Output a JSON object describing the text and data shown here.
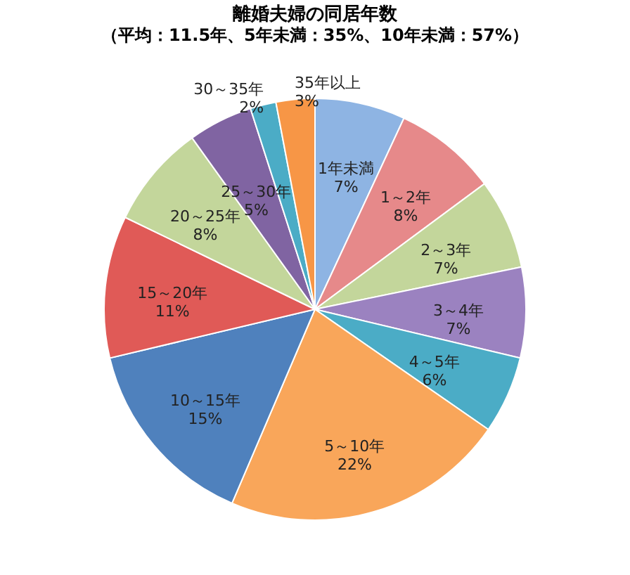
{
  "chart_data": {
    "type": "pie",
    "title": "離婚夫婦の同居年数",
    "subtitle": "（平均：11.5年、5年未満：35%、10年未満：57%）",
    "categories": [
      "1年未満",
      "1～2年",
      "2～3年",
      "3～4年",
      "4～5年",
      "5～10年",
      "10～15年",
      "15～20年",
      "20～25年",
      "25～30年",
      "30～35年",
      "35年以上"
    ],
    "values": [
      7,
      8,
      7,
      7,
      6,
      22,
      15,
      11,
      8,
      5,
      2,
      3
    ],
    "value_labels": [
      "7%",
      "8%",
      "7%",
      "7%",
      "6%",
      "22%",
      "15%",
      "11%",
      "8%",
      "5%",
      "2%",
      "3%"
    ],
    "colors": [
      "#8eb4e3",
      "#e6898a",
      "#c3d69b",
      "#9b82c0",
      "#4bacc6",
      "#f9a65a",
      "#4f81bd",
      "#e05a57",
      "#c3d69b",
      "#8064a2",
      "#4bacc6",
      "#f79646"
    ],
    "legend": false
  }
}
